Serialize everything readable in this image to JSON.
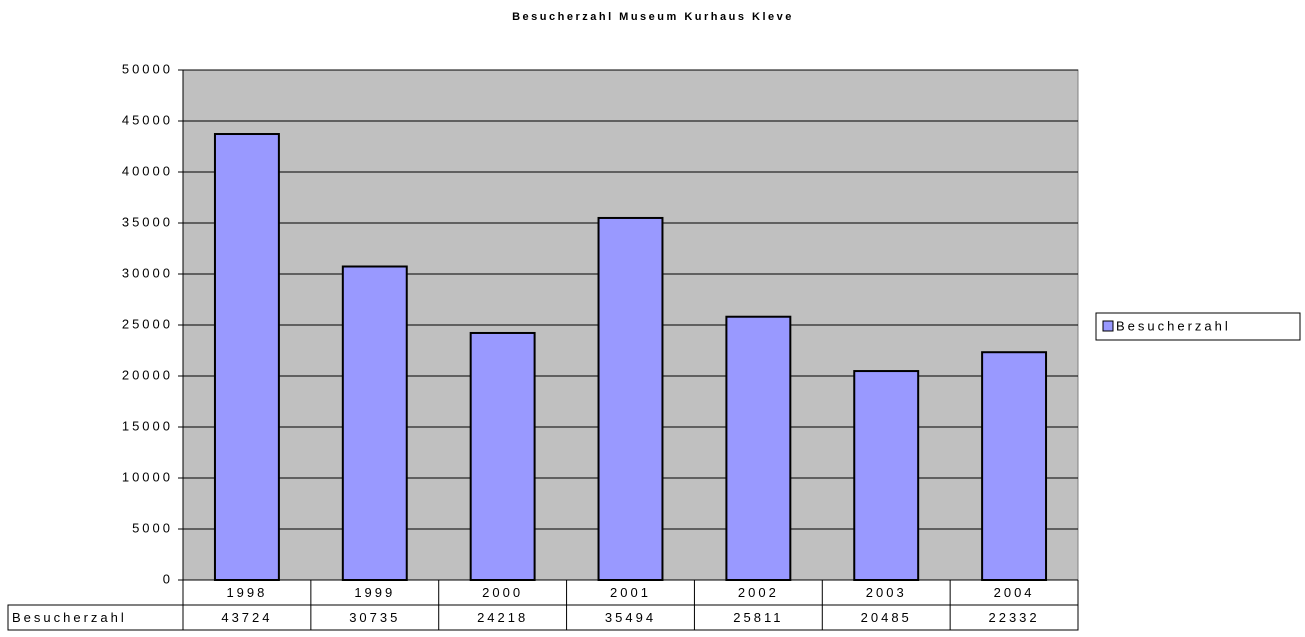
{
  "chart_data": {
    "type": "bar",
    "title": "Besucherzahl Museum Kurhaus Kleve",
    "categories": [
      "1998",
      "1999",
      "2000",
      "2001",
      "2002",
      "2003",
      "2004"
    ],
    "series": [
      {
        "name": "Besucherzahl",
        "color": "#9999ff",
        "values": [
          43724,
          30735,
          24218,
          35494,
          25811,
          20485,
          22332
        ]
      }
    ],
    "ylim": [
      0,
      50000
    ],
    "yticks": [
      0,
      5000,
      10000,
      15000,
      20000,
      25000,
      30000,
      35000,
      40000,
      45000,
      50000
    ],
    "grid": true,
    "legend": "right",
    "data_table": true
  }
}
